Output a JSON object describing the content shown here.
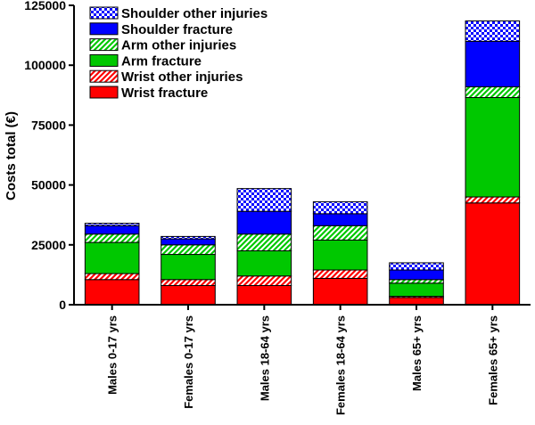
{
  "chart_data": {
    "type": "bar",
    "stacked": true,
    "ylabel": "Costs total (€)",
    "ylim": [
      0,
      125000
    ],
    "yticks": [
      0,
      25000,
      50000,
      75000,
      100000,
      125000
    ],
    "ytick_labels": [
      "0",
      "25000",
      "50000",
      "75000",
      "100000",
      "125000"
    ],
    "categories": [
      "Males 0-17 yrs",
      "Females 0-17 yrs",
      "Males 18-64 yrs",
      "Females 18-64 yrs",
      "Males 65+ yrs",
      "Females 65+ yrs"
    ],
    "series": [
      {
        "name": "Wrist fracture",
        "color": "#ff0000",
        "pattern": "solid",
        "values": [
          10500,
          8000,
          8000,
          11000,
          3000,
          42500
        ]
      },
      {
        "name": "Wrist other injuries",
        "color": "#ff0000",
        "pattern": "hatch",
        "values": [
          2500,
          2500,
          4000,
          3500,
          500,
          2500
        ]
      },
      {
        "name": "Arm fracture",
        "color": "#00c800",
        "pattern": "solid",
        "values": [
          13000,
          10500,
          10500,
          12500,
          5500,
          41500
        ]
      },
      {
        "name": "Arm other injuries",
        "color": "#00c800",
        "pattern": "hatch",
        "values": [
          3500,
          4000,
          7000,
          6000,
          1500,
          4500
        ]
      },
      {
        "name": "Shoulder fracture",
        "color": "#0000ff",
        "pattern": "solid",
        "values": [
          3500,
          2500,
          9500,
          5000,
          4000,
          19000
        ]
      },
      {
        "name": "Shoulder other injuries",
        "color": "#0000ff",
        "pattern": "checker",
        "values": [
          1000,
          1000,
          9500,
          5000,
          3000,
          8500
        ]
      }
    ],
    "legend_order": [
      "Shoulder other injuries",
      "Shoulder fracture",
      "Arm other injuries",
      "Arm fracture",
      "Wrist other injuries",
      "Wrist fracture"
    ],
    "legend_position": "top-left",
    "grid": false
  }
}
